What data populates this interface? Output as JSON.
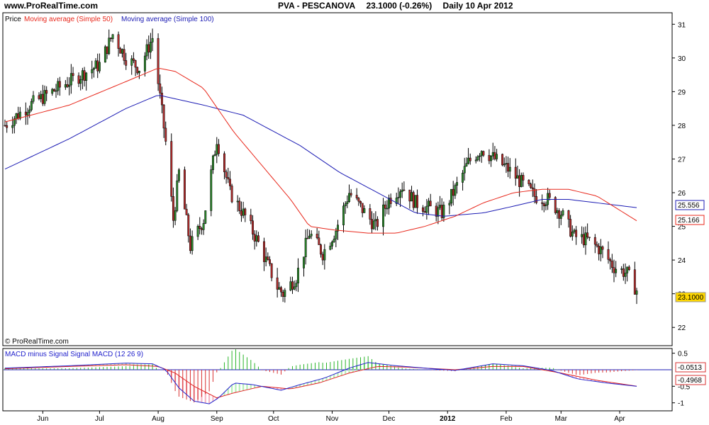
{
  "header": {
    "site": "www.ProRealTime.com",
    "symbol": "PVA - PESCANOVA",
    "last": "23.1000 (-0.26%)",
    "period": "Daily  10 Apr 2012"
  },
  "watermark": "© ProRealTime.com",
  "colors": {
    "ma50": "#e8281c",
    "ma100": "#1c1cb4",
    "candle_up": "#2e8b2e",
    "candle_down": "#b42d2d",
    "macd": "#2222cc",
    "signal": "#e02020",
    "hist_pos": "#2bb52b",
    "hist_neg": "#d93030",
    "fill_pos": "#b6f0b6",
    "fill_neg": "#f5b7c5",
    "last_box": "#ffd700"
  },
  "chart_data": [
    {
      "type": "candlestick",
      "title": "PVA - PESCANOVA",
      "legend": [
        "Price",
        "Moving average (Simple 50)",
        "Moving average (Simple 100)"
      ],
      "ylim": [
        21.5,
        31.3
      ],
      "y_ticks": [
        "22",
        "23",
        "24",
        "25",
        "26",
        "27",
        "28",
        "29",
        "30",
        "31"
      ],
      "x_labels": [
        "Jun",
        "Jul",
        "Aug",
        "Sep",
        "Oct",
        "Nov",
        "Dec",
        "2012",
        "Feb",
        "Mar",
        "Apr"
      ],
      "price_path": [
        [
          "2011-05-12",
          28.0
        ],
        [
          "2011-05-25",
          28.6
        ],
        [
          "2011-06-15",
          29.3
        ],
        [
          "2011-07-01",
          29.8
        ],
        [
          "2011-07-08",
          30.7
        ],
        [
          "2011-07-15",
          30.0
        ],
        [
          "2011-07-22",
          29.7
        ],
        [
          "2011-07-29",
          30.6
        ],
        [
          "2011-08-05",
          27.5
        ],
        [
          "2011-08-09",
          25.2
        ],
        [
          "2011-08-12",
          26.6
        ],
        [
          "2011-08-18",
          24.4
        ],
        [
          "2011-08-25",
          25.2
        ],
        [
          "2011-09-01",
          27.6
        ],
        [
          "2011-09-08",
          26.0
        ],
        [
          "2011-09-16",
          25.3
        ],
        [
          "2011-09-23",
          24.5
        ],
        [
          "2011-10-03",
          23.2
        ],
        [
          "2011-10-06",
          23.0
        ],
        [
          "2011-10-13",
          23.5
        ],
        [
          "2011-10-20",
          24.8
        ],
        [
          "2011-10-27",
          24.2
        ],
        [
          "2011-11-03",
          24.9
        ],
        [
          "2011-11-10",
          26.0
        ],
        [
          "2011-11-17",
          25.5
        ],
        [
          "2011-11-24",
          25.0
        ],
        [
          "2011-12-01",
          25.8
        ],
        [
          "2011-12-08",
          26.2
        ],
        [
          "2011-12-15",
          25.7
        ],
        [
          "2011-12-29",
          25.4
        ],
        [
          "2012-01-05",
          26.1
        ],
        [
          "2012-01-12",
          26.9
        ],
        [
          "2012-01-19",
          27.3
        ],
        [
          "2012-01-26",
          27.0
        ],
        [
          "2012-02-02",
          26.7
        ],
        [
          "2012-02-09",
          26.3
        ],
        [
          "2012-02-16",
          25.9
        ],
        [
          "2012-02-23",
          25.8
        ],
        [
          "2012-03-01",
          25.4
        ],
        [
          "2012-03-08",
          24.7
        ],
        [
          "2012-03-15",
          24.6
        ],
        [
          "2012-03-22",
          24.3
        ],
        [
          "2012-03-29",
          23.8
        ],
        [
          "2012-04-05",
          23.6
        ],
        [
          "2012-04-10",
          23.1
        ]
      ],
      "ma50": [
        [
          "2011-05-12",
          28.1
        ],
        [
          "2011-06-15",
          28.6
        ],
        [
          "2011-07-15",
          29.3
        ],
        [
          "2011-08-01",
          29.7
        ],
        [
          "2011-08-10",
          29.6
        ],
        [
          "2011-08-25",
          29.1
        ],
        [
          "2011-09-10",
          27.8
        ],
        [
          "2011-09-25",
          26.8
        ],
        [
          "2011-10-10",
          25.8
        ],
        [
          "2011-10-20",
          25.0
        ],
        [
          "2011-11-01",
          24.9
        ],
        [
          "2011-11-20",
          24.8
        ],
        [
          "2011-12-05",
          24.8
        ],
        [
          "2011-12-20",
          25.0
        ],
        [
          "2012-01-05",
          25.3
        ],
        [
          "2012-01-20",
          25.7
        ],
        [
          "2012-02-05",
          26.0
        ],
        [
          "2012-02-20",
          26.1
        ],
        [
          "2012-03-05",
          26.1
        ],
        [
          "2012-03-20",
          25.9
        ],
        [
          "2012-04-10",
          25.166
        ]
      ],
      "ma100": [
        [
          "2011-05-12",
          26.7
        ],
        [
          "2011-06-15",
          27.6
        ],
        [
          "2011-07-15",
          28.5
        ],
        [
          "2011-08-01",
          28.9
        ],
        [
          "2011-08-25",
          28.6
        ],
        [
          "2011-09-15",
          28.3
        ],
        [
          "2011-10-15",
          27.4
        ],
        [
          "2011-11-05",
          26.6
        ],
        [
          "2011-11-25",
          26.0
        ],
        [
          "2011-12-15",
          25.4
        ],
        [
          "2011-12-30",
          25.3
        ],
        [
          "2012-01-20",
          25.4
        ],
        [
          "2012-02-05",
          25.6
        ],
        [
          "2012-02-20",
          25.8
        ],
        [
          "2012-03-05",
          25.8
        ],
        [
          "2012-04-10",
          25.556
        ]
      ],
      "last_values": {
        "price": "23.1000",
        "ma50": "25.166",
        "ma100": "25.556"
      }
    },
    {
      "type": "line",
      "title": "MACD minus Signal Signal MACD (12 26 9)",
      "ylim": [
        -1.2,
        0.6
      ],
      "y_ticks": [
        "0.5",
        "-0.5",
        "-1"
      ],
      "macd": [
        [
          "2011-05-12",
          0.05
        ],
        [
          "2011-06-15",
          0.12
        ],
        [
          "2011-07-15",
          0.2
        ],
        [
          "2011-07-29",
          0.18
        ],
        [
          "2011-08-05",
          0.0
        ],
        [
          "2011-08-12",
          -0.55
        ],
        [
          "2011-08-20",
          -0.95
        ],
        [
          "2011-08-28",
          -1.03
        ],
        [
          "2011-09-02",
          -0.85
        ],
        [
          "2011-09-10",
          -0.4
        ],
        [
          "2011-09-20",
          -0.45
        ],
        [
          "2011-10-05",
          -0.62
        ],
        [
          "2011-10-15",
          -0.45
        ],
        [
          "2011-10-28",
          -0.25
        ],
        [
          "2011-11-10",
          0.05
        ],
        [
          "2011-11-20",
          0.22
        ],
        [
          "2011-12-05",
          0.12
        ],
        [
          "2011-12-20",
          0.05
        ],
        [
          "2012-01-05",
          -0.02
        ],
        [
          "2012-01-25",
          0.18
        ],
        [
          "2012-02-10",
          0.12
        ],
        [
          "2012-02-25",
          -0.02
        ],
        [
          "2012-03-10",
          -0.28
        ],
        [
          "2012-03-25",
          -0.4
        ],
        [
          "2012-04-10",
          -0.5
        ]
      ],
      "signal": [
        [
          "2011-05-12",
          0.03
        ],
        [
          "2011-06-15",
          0.1
        ],
        [
          "2011-07-15",
          0.15
        ],
        [
          "2011-08-01",
          0.1
        ],
        [
          "2011-08-10",
          -0.1
        ],
        [
          "2011-08-20",
          -0.5
        ],
        [
          "2011-09-01",
          -0.85
        ],
        [
          "2011-09-10",
          -0.7
        ],
        [
          "2011-09-25",
          -0.5
        ],
        [
          "2011-10-10",
          -0.58
        ],
        [
          "2011-10-25",
          -0.4
        ],
        [
          "2011-11-10",
          -0.1
        ],
        [
          "2011-11-25",
          0.1
        ],
        [
          "2011-12-10",
          0.08
        ],
        [
          "2012-01-05",
          0.0
        ],
        [
          "2012-01-25",
          0.1
        ],
        [
          "2012-02-10",
          0.1
        ],
        [
          "2012-03-01",
          -0.1
        ],
        [
          "2012-03-20",
          -0.32
        ],
        [
          "2012-04-10",
          -0.4968
        ]
      ],
      "last_values": {
        "macd_minus_signal": "-0.0513",
        "signal": "-0.4968"
      }
    }
  ]
}
